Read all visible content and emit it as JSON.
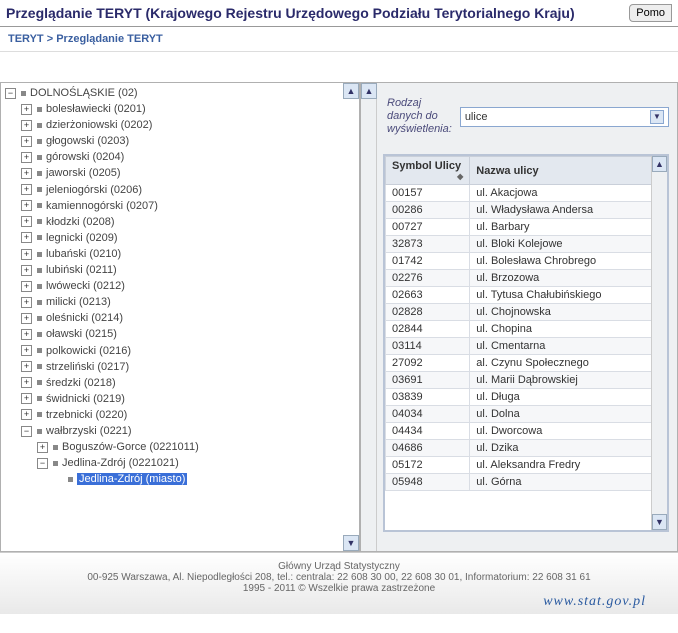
{
  "header": {
    "title": "Przeglądanie TERYT (Krajowego Rejestru Urzędowego Podziału Terytorialnego Kraju)",
    "help_label": "Pomo"
  },
  "breadcrumb": {
    "root": "TERYT",
    "sep": ">",
    "current": "Przeglądanie TERYT"
  },
  "tree": {
    "root": {
      "label": "DOLNOŚLĄSKIE (02)",
      "toggle": "−"
    },
    "items": [
      {
        "label": "bolesławiecki (0201)",
        "toggle": "+"
      },
      {
        "label": "dzierżoniowski (0202)",
        "toggle": "+"
      },
      {
        "label": "głogowski (0203)",
        "toggle": "+"
      },
      {
        "label": "górowski (0204)",
        "toggle": "+"
      },
      {
        "label": "jaworski (0205)",
        "toggle": "+"
      },
      {
        "label": "jeleniogórski (0206)",
        "toggle": "+"
      },
      {
        "label": "kamiennogórski (0207)",
        "toggle": "+"
      },
      {
        "label": "kłodzki (0208)",
        "toggle": "+"
      },
      {
        "label": "legnicki (0209)",
        "toggle": "+"
      },
      {
        "label": "lubański (0210)",
        "toggle": "+"
      },
      {
        "label": "lubiński (0211)",
        "toggle": "+"
      },
      {
        "label": "lwówecki (0212)",
        "toggle": "+"
      },
      {
        "label": "milicki (0213)",
        "toggle": "+"
      },
      {
        "label": "oleśnicki (0214)",
        "toggle": "+"
      },
      {
        "label": "oławski (0215)",
        "toggle": "+"
      },
      {
        "label": "polkowicki (0216)",
        "toggle": "+"
      },
      {
        "label": "strzeliński (0217)",
        "toggle": "+"
      },
      {
        "label": "średzki (0218)",
        "toggle": "+"
      },
      {
        "label": "świdnicki (0219)",
        "toggle": "+"
      },
      {
        "label": "trzebnicki (0220)",
        "toggle": "+"
      },
      {
        "label": "wałbrzyski (0221)",
        "toggle": "−"
      }
    ],
    "sub": [
      {
        "label": "Boguszów-Gorce (0221011)",
        "toggle": "+",
        "indent": 2
      },
      {
        "label": "Jedlina-Zdrój (0221021)",
        "toggle": "−",
        "indent": 2
      },
      {
        "label": "Jedlina-Zdrój (miasto)",
        "toggle": "",
        "indent": 3,
        "selected": true
      }
    ]
  },
  "filter": {
    "label": "Rodzaj\ndanych do\nwyświetlenia:",
    "selected": "ulice"
  },
  "table": {
    "columns": [
      "Symbol Ulicy",
      "Nazwa ulicy"
    ],
    "col_widths": [
      "30%",
      "70%"
    ],
    "rows": [
      [
        "00157",
        "ul. Akacjowa"
      ],
      [
        "00286",
        "ul. Władysława Andersa"
      ],
      [
        "00727",
        "ul. Barbary"
      ],
      [
        "32873",
        "ul. Bloki Kolejowe"
      ],
      [
        "01742",
        "ul. Bolesława Chrobrego"
      ],
      [
        "02276",
        "ul. Brzozowa"
      ],
      [
        "02663",
        "ul. Tytusa Chałubińskiego"
      ],
      [
        "02828",
        "ul. Chojnowska"
      ],
      [
        "02844",
        "ul. Chopina"
      ],
      [
        "03114",
        "ul. Cmentarna"
      ],
      [
        "27092",
        "al. Czynu Społecznego"
      ],
      [
        "03691",
        "ul. Marii Dąbrowskiej"
      ],
      [
        "03839",
        "ul. Długa"
      ],
      [
        "04034",
        "ul. Dolna"
      ],
      [
        "04434",
        "ul. Dworcowa"
      ],
      [
        "04686",
        "ul. Dzika"
      ],
      [
        "05172",
        "ul. Aleksandra Fredry"
      ],
      [
        "05948",
        "ul. Górna"
      ]
    ]
  },
  "footer": {
    "line1": "Główny Urząd Statystyczny",
    "line2": "00-925 Warszawa, Al. Niepodległości 208, tel.: centrala: 22 608 30 00, 22 608 30 01, Informatorium: 22 608 31 61",
    "line3": "1995 - 2011 © Wszelkie prawa zastrzeżone",
    "stat": "www.stat.gov.pl"
  },
  "colors": {
    "accent": "#2a2a6a",
    "link": "#3a5fa0",
    "selected_bg": "#3a6fd8",
    "header_bg": "#e3e8ef",
    "border": "#b0b0b0"
  }
}
